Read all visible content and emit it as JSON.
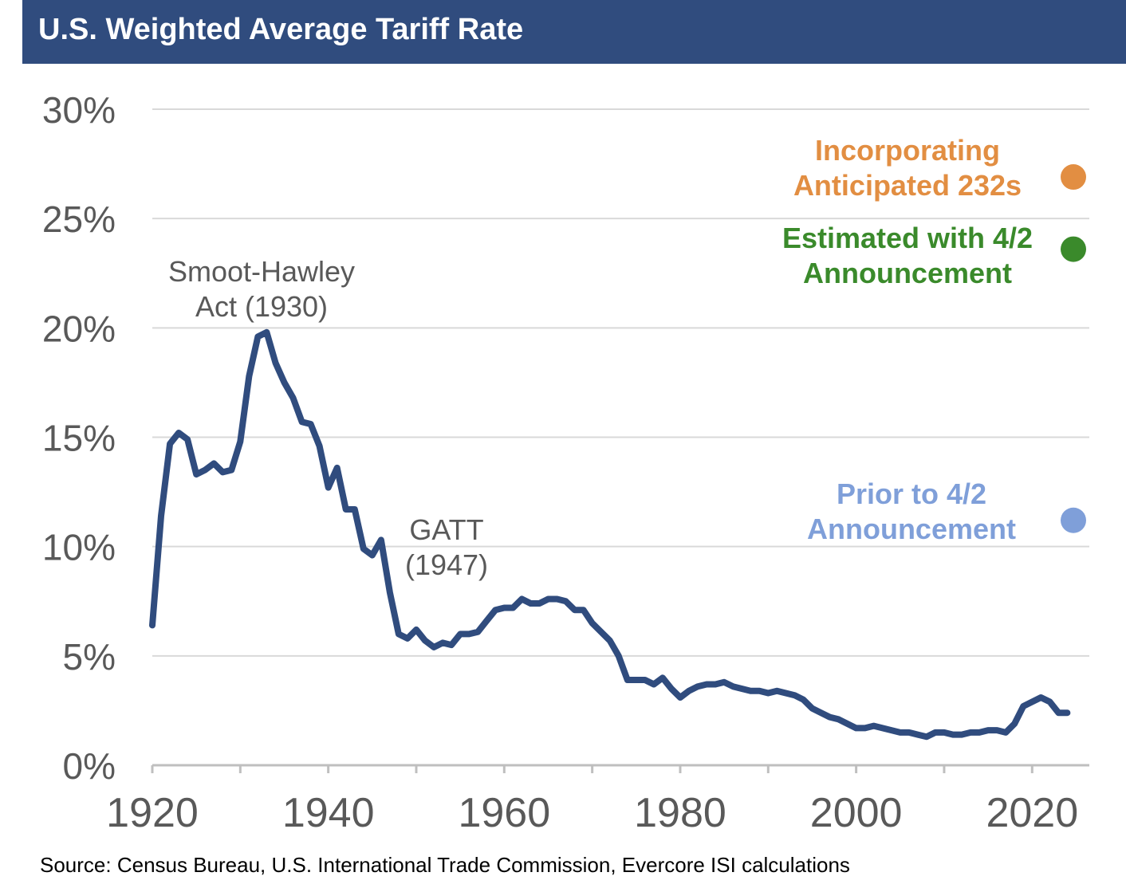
{
  "header": {
    "title": "U.S. Weighted Average Tariff Rate"
  },
  "source": "Source: Census Bureau, U.S. International Trade Commission, Evercore ISI calculations",
  "chart_data": {
    "type": "line",
    "title": "U.S. Weighted Average Tariff Rate",
    "xlabel": "",
    "ylabel": "",
    "xlim": [
      1920,
      2026.5
    ],
    "ylim": [
      0,
      30
    ],
    "grid": true,
    "y_ticks": [
      {
        "value": 0,
        "label": "0%"
      },
      {
        "value": 5,
        "label": "5%"
      },
      {
        "value": 10,
        "label": "10%"
      },
      {
        "value": 15,
        "label": "15%"
      },
      {
        "value": 20,
        "label": "20%"
      },
      {
        "value": 25,
        "label": "25%"
      },
      {
        "value": 30,
        "label": "30%"
      }
    ],
    "x_ticks": [
      {
        "value": 1920,
        "label": "1920"
      },
      {
        "value": 1940,
        "label": "1940"
      },
      {
        "value": 1960,
        "label": "1960"
      },
      {
        "value": 1980,
        "label": "1980"
      },
      {
        "value": 2000,
        "label": "2000"
      },
      {
        "value": 2020,
        "label": "2020"
      }
    ],
    "series": [
      {
        "color": "#304c7e",
        "x": [
          1920,
          1921,
          1922,
          1923,
          1924,
          1925,
          1926,
          1927,
          1928,
          1929,
          1930,
          1931,
          1932,
          1933,
          1934,
          1935,
          1936,
          1937,
          1938,
          1939,
          1940,
          1941,
          1942,
          1943,
          1944,
          1945,
          1946,
          1947,
          1948,
          1949,
          1950,
          1951,
          1952,
          1953,
          1954,
          1955,
          1956,
          1957,
          1958,
          1959,
          1960,
          1961,
          1962,
          1963,
          1964,
          1965,
          1966,
          1967,
          1968,
          1969,
          1970,
          1971,
          1972,
          1973,
          1974,
          1975,
          1976,
          1977,
          1978,
          1979,
          1980,
          1981,
          1982,
          1983,
          1984,
          1985,
          1986,
          1987,
          1988,
          1989,
          1990,
          1991,
          1992,
          1993,
          1994,
          1995,
          1996,
          1997,
          1998,
          1999,
          2000,
          2001,
          2002,
          2003,
          2004,
          2005,
          2006,
          2007,
          2008,
          2009,
          2010,
          2011,
          2012,
          2013,
          2014,
          2015,
          2016,
          2017,
          2018,
          2019,
          2020,
          2021,
          2022,
          2023,
          2024
        ],
        "y": [
          6.4,
          11.4,
          14.7,
          15.2,
          14.9,
          13.3,
          13.5,
          13.8,
          13.4,
          13.5,
          14.8,
          17.8,
          19.6,
          19.8,
          18.4,
          17.5,
          16.8,
          15.7,
          15.6,
          14.6,
          12.7,
          13.6,
          11.7,
          11.7,
          9.9,
          9.6,
          10.3,
          7.9,
          6.0,
          5.8,
          6.2,
          5.7,
          5.4,
          5.6,
          5.5,
          6.0,
          6.0,
          6.1,
          6.6,
          7.1,
          7.2,
          7.2,
          7.6,
          7.4,
          7.4,
          7.6,
          7.6,
          7.5,
          7.1,
          7.1,
          6.5,
          6.1,
          5.7,
          5.0,
          3.9,
          3.9,
          3.9,
          3.7,
          4.0,
          3.5,
          3.1,
          3.4,
          3.6,
          3.7,
          3.7,
          3.8,
          3.6,
          3.5,
          3.4,
          3.4,
          3.3,
          3.4,
          3.3,
          3.2,
          3.0,
          2.6,
          2.4,
          2.2,
          2.1,
          1.9,
          1.7,
          1.7,
          1.8,
          1.7,
          1.6,
          1.5,
          1.5,
          1.4,
          1.3,
          1.5,
          1.5,
          1.4,
          1.4,
          1.5,
          1.5,
          1.6,
          1.6,
          1.5,
          1.9,
          2.7,
          2.9,
          3.1,
          2.9,
          2.4,
          2.4
        ]
      }
    ],
    "markers": [
      {
        "label_lines": [
          "Incorporating",
          "Anticipated 232s"
        ],
        "y": 26.9,
        "color": "#e28e42"
      },
      {
        "label_lines": [
          "Estimated with 4/2",
          "Announcement"
        ],
        "y": 23.6,
        "color": "#3a8a2b"
      },
      {
        "label_lines": [
          "Prior to 4/2",
          "Announcement"
        ],
        "y": 11.2,
        "color": "#7f9fd9"
      }
    ],
    "annotations": [
      {
        "lines": [
          "Smoot-Hawley",
          "Act (1930)"
        ]
      },
      {
        "lines": [
          "GATT",
          "(1947)"
        ]
      }
    ]
  }
}
